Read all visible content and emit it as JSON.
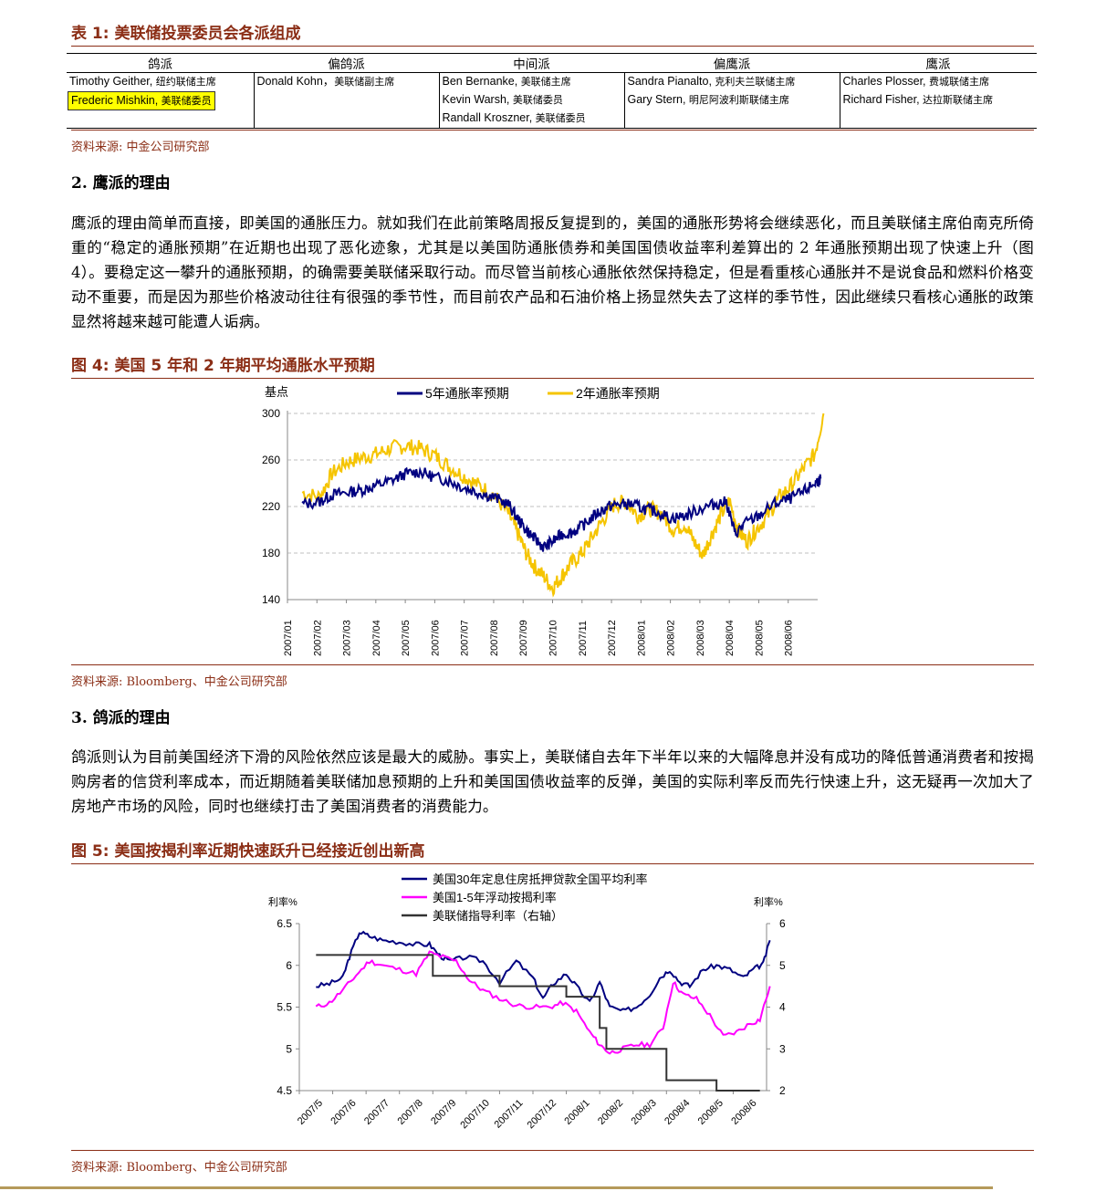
{
  "table1": {
    "caption": "表 1: 美联储投票委员会各派组成",
    "columns": [
      {
        "header": "鸽派",
        "members": [
          {
            "name": "Timothy Geither",
            "role": "纽约联储主席",
            "highlight": false
          },
          {
            "name": "Frederic Mishkin",
            "role": "美联储委员",
            "highlight": true
          }
        ]
      },
      {
        "header": "偏鸽派",
        "members": [
          {
            "name": "Donald Kohn",
            "role": "美联储副主席",
            "highlight": false
          }
        ]
      },
      {
        "header": "中间派",
        "members": [
          {
            "name": "Ben Bernanke",
            "role": "美联储主席",
            "highlight": false
          },
          {
            "name": "Kevin Warsh",
            "role": "美联储委员",
            "highlight": false
          },
          {
            "name": "Randall Kroszner",
            "role": "美联储委员",
            "highlight": false
          }
        ]
      },
      {
        "header": "偏鹰派",
        "members": [
          {
            "name": "Sandra Pianalto",
            "role": "克利夫兰联储主席",
            "highlight": false
          },
          {
            "name": "Gary Stern",
            "role": "明尼阿波利斯联储主席",
            "highlight": false
          }
        ]
      },
      {
        "header": "鹰派",
        "members": [
          {
            "name": "Charles Plosser",
            "role": "费城联储主席",
            "highlight": false
          },
          {
            "name": "Richard Fisher",
            "role": "达拉斯联储主席",
            "highlight": false
          }
        ]
      }
    ],
    "source": "资料来源: 中金公司研究部"
  },
  "section2": {
    "heading": "2. 鹰派的理由",
    "paragraph": "鹰派的理由简单而直接，即美国的通胀压力。就如我们在此前策略周报反复提到的，美国的通胀形势将会继续恶化，而且美联储主席伯南克所倚重的“稳定的通胀预期”在近期也出现了恶化迹象，尤其是以美国防通胀债券和美国国债收益率利差算出的 2 年通胀预期出现了快速上升（图 4）。要稳定这一攀升的通胀预期，的确需要美联储采取行动。而尽管当前核心通胀依然保持稳定，但是看重核心通胀并不是说食品和燃料价格变动不重要，而是因为那些价格波动往往有很强的季节性，而目前农产品和石油价格上扬显然失去了这样的季节性，因此继续只看核心通胀的政策显然将越来越可能遭人诟病。"
  },
  "figure4": {
    "caption": "图 4: 美国 5 年和 2 年期平均通胀水平预期",
    "source": "资料来源: Bloomberg、中金公司研究部"
  },
  "section3": {
    "heading": "3. 鸽派的理由",
    "paragraph": "鸽派则认为目前美国经济下滑的风险依然应该是最大的威胁。事实上，美联储自去年下半年以来的大幅降息并没有成功的降低普通消费者和按揭购房者的信贷利率成本，而近期随着美联储加息预期的上升和美国国债收益率的反弹，美国的实际利率反而先行快速上升，这无疑再一次加大了房地产市场的风险，同时也继续打击了美国消费者的消费能力。"
  },
  "figure5": {
    "caption": "图 5: 美国按揭利率近期快速跃升已经接近创出新高",
    "source": "资料来源: Bloomberg、中金公司研究部"
  },
  "chart_data": [
    {
      "type": "line",
      "ylabel": "基点",
      "ylim": [
        140,
        300
      ],
      "yticks": [
        140,
        180,
        220,
        260,
        300
      ],
      "categories": [
        "2007/01",
        "2007/02",
        "2007/03",
        "2007/04",
        "2007/05",
        "2007/06",
        "2007/07",
        "2007/08",
        "2007/09",
        "2007/10",
        "2007/11",
        "2007/12",
        "2008/01",
        "2008/02",
        "2008/03",
        "2008/04",
        "2008/05",
        "2008/06"
      ],
      "grid": "horizontal dashed",
      "legend": "top",
      "series": [
        {
          "name": "5年通胀率预期",
          "color": "#000080",
          "values": [
            [
              0,
              222
            ],
            [
              0.6,
              224
            ],
            [
              1.0,
              230
            ],
            [
              1.5,
              232
            ],
            [
              2.0,
              234
            ],
            [
              2.5,
              238
            ],
            [
              3.0,
              242
            ],
            [
              3.5,
              248
            ],
            [
              4.0,
              250
            ],
            [
              4.5,
              245
            ],
            [
              5.0,
              242
            ],
            [
              5.5,
              236
            ],
            [
              6.0,
              232
            ],
            [
              6.5,
              228
            ],
            [
              7.0,
              222
            ],
            [
              7.3,
              210
            ],
            [
              7.6,
              200
            ],
            [
              7.9,
              192
            ],
            [
              8.2,
              185
            ],
            [
              8.5,
              190
            ],
            [
              8.8,
              196
            ],
            [
              9.2,
              198
            ],
            [
              9.6,
              205
            ],
            [
              10.0,
              214
            ],
            [
              10.4,
              220
            ],
            [
              10.8,
              222
            ],
            [
              11.2,
              222
            ],
            [
              11.6,
              218
            ],
            [
              12.0,
              216
            ],
            [
              12.5,
              210
            ],
            [
              13.0,
              212
            ],
            [
              13.5,
              218
            ],
            [
              14.0,
              222
            ],
            [
              14.4,
              224
            ],
            [
              14.7,
              196
            ],
            [
              15.0,
              205
            ],
            [
              15.5,
              212
            ],
            [
              16.0,
              222
            ],
            [
              16.5,
              226
            ],
            [
              17.0,
              232
            ],
            [
              17.4,
              240
            ],
            [
              17.6,
              244
            ]
          ]
        },
        {
          "name": "2年通胀率预期",
          "color": "#F5C400",
          "values": [
            [
              0,
              232
            ],
            [
              0.6,
              228
            ],
            [
              1.0,
              248
            ],
            [
              1.5,
              258
            ],
            [
              2.0,
              262
            ],
            [
              2.5,
              265
            ],
            [
              3.0,
              270
            ],
            [
              3.5,
              272
            ],
            [
              4.0,
              270
            ],
            [
              4.5,
              264
            ],
            [
              5.0,
              254
            ],
            [
              5.5,
              246
            ],
            [
              6.0,
              238
            ],
            [
              6.5,
              230
            ],
            [
              7.0,
              214
            ],
            [
              7.3,
              198
            ],
            [
              7.6,
              180
            ],
            [
              7.9,
              168
            ],
            [
              8.2,
              160
            ],
            [
              8.5,
              150
            ],
            [
              8.8,
              160
            ],
            [
              9.1,
              170
            ],
            [
              9.5,
              180
            ],
            [
              9.8,
              192
            ],
            [
              10.2,
              208
            ],
            [
              10.6,
              222
            ],
            [
              11.0,
              224
            ],
            [
              11.4,
              212
            ],
            [
              11.8,
              218
            ],
            [
              12.2,
              214
            ],
            [
              12.6,
              200
            ],
            [
              13.0,
              205
            ],
            [
              13.3,
              190
            ],
            [
              13.6,
              178
            ],
            [
              13.9,
              196
            ],
            [
              14.2,
              212
            ],
            [
              14.5,
              225
            ],
            [
              14.8,
              200
            ],
            [
              15.1,
              190
            ],
            [
              15.4,
              200
            ],
            [
              15.8,
              212
            ],
            [
              16.2,
              228
            ],
            [
              16.6,
              238
            ],
            [
              17.0,
              252
            ],
            [
              17.4,
              265
            ],
            [
              17.7,
              300
            ]
          ]
        }
      ]
    },
    {
      "type": "line",
      "ylabel": "利率%",
      "ylim": [
        4.5,
        6.5
      ],
      "yticks": [
        4.5,
        5,
        5.5,
        6,
        6.5
      ],
      "ylabel_right": "利率%",
      "ylim_right": [
        2,
        6
      ],
      "yticks_right": [
        2,
        3,
        4,
        5,
        6
      ],
      "categories": [
        "2007/5",
        "2007/6",
        "2007/7",
        "2007/8",
        "2007/9",
        "2007/10",
        "2007/11",
        "2007/12",
        "2008/1",
        "2008/2",
        "2008/3",
        "2008/4",
        "2008/5",
        "2008/6"
      ],
      "grid": "none",
      "legend": "top",
      "series": [
        {
          "name": "美国30年定息住房抵押贷款全国平均利率",
          "color": "#000080",
          "axis": "left",
          "values": [
            [
              0,
              5.75
            ],
            [
              0.4,
              5.78
            ],
            [
              0.8,
              5.85
            ],
            [
              1.0,
              6.1
            ],
            [
              1.3,
              6.4
            ],
            [
              1.6,
              6.35
            ],
            [
              2.0,
              6.3
            ],
            [
              2.5,
              6.28
            ],
            [
              3.0,
              6.25
            ],
            [
              3.4,
              6.25
            ],
            [
              3.7,
              6.12
            ],
            [
              4.0,
              6.05
            ],
            [
              4.5,
              6.1
            ],
            [
              5.0,
              6.05
            ],
            [
              5.5,
              5.8
            ],
            [
              6.0,
              6.05
            ],
            [
              6.5,
              5.85
            ],
            [
              6.8,
              5.6
            ],
            [
              7.1,
              5.78
            ],
            [
              7.5,
              5.9
            ],
            [
              7.8,
              5.75
            ],
            [
              8.2,
              5.55
            ],
            [
              8.5,
              5.8
            ],
            [
              8.8,
              5.5
            ],
            [
              9.2,
              5.45
            ],
            [
              9.6,
              5.5
            ],
            [
              10.0,
              5.65
            ],
            [
              10.3,
              5.85
            ],
            [
              10.6,
              5.95
            ],
            [
              10.9,
              5.8
            ],
            [
              11.2,
              5.75
            ],
            [
              11.6,
              5.95
            ],
            [
              12.0,
              6.0
            ],
            [
              12.4,
              5.95
            ],
            [
              12.8,
              5.85
            ],
            [
              13.1,
              5.95
            ],
            [
              13.4,
              6.02
            ],
            [
              13.6,
              6.3
            ]
          ]
        },
        {
          "name": "美国1-5年浮动按揭利率",
          "color": "#FF00FF",
          "axis": "left",
          "values": [
            [
              0,
              5.5
            ],
            [
              0.4,
              5.55
            ],
            [
              0.8,
              5.7
            ],
            [
              1.2,
              5.88
            ],
            [
              1.6,
              6.05
            ],
            [
              2.0,
              6.0
            ],
            [
              2.5,
              5.95
            ],
            [
              3.0,
              5.9
            ],
            [
              3.4,
              6.15
            ],
            [
              3.8,
              6.1
            ],
            [
              4.2,
              6.05
            ],
            [
              4.6,
              5.82
            ],
            [
              5.0,
              5.7
            ],
            [
              5.5,
              5.6
            ],
            [
              6.0,
              5.52
            ],
            [
              6.5,
              5.5
            ],
            [
              7.0,
              5.5
            ],
            [
              7.4,
              5.55
            ],
            [
              7.8,
              5.45
            ],
            [
              8.2,
              5.2
            ],
            [
              8.5,
              5.05
            ],
            [
              8.8,
              4.95
            ],
            [
              9.2,
              5.0
            ],
            [
              9.6,
              5.05
            ],
            [
              10.0,
              5.05
            ],
            [
              10.4,
              5.25
            ],
            [
              10.7,
              5.8
            ],
            [
              11.0,
              5.65
            ],
            [
              11.4,
              5.6
            ],
            [
              11.8,
              5.4
            ],
            [
              12.2,
              5.15
            ],
            [
              12.6,
              5.2
            ],
            [
              13.0,
              5.3
            ],
            [
              13.3,
              5.35
            ],
            [
              13.6,
              5.75
            ]
          ]
        },
        {
          "name": "美联储指导利率（右轴）",
          "color": "#333333",
          "axis": "right",
          "values": [
            [
              0,
              5.25
            ],
            [
              3.5,
              5.25
            ],
            [
              3.5,
              4.75
            ],
            [
              5.5,
              4.75
            ],
            [
              5.5,
              4.5
            ],
            [
              7.5,
              4.5
            ],
            [
              7.5,
              4.25
            ],
            [
              8.5,
              4.25
            ],
            [
              8.5,
              3.5
            ],
            [
              8.7,
              3.5
            ],
            [
              8.7,
              3.0
            ],
            [
              10.5,
              3.0
            ],
            [
              10.5,
              2.25
            ],
            [
              12.0,
              2.25
            ],
            [
              12.0,
              2.0
            ],
            [
              13.3,
              2.0
            ]
          ]
        }
      ]
    }
  ]
}
